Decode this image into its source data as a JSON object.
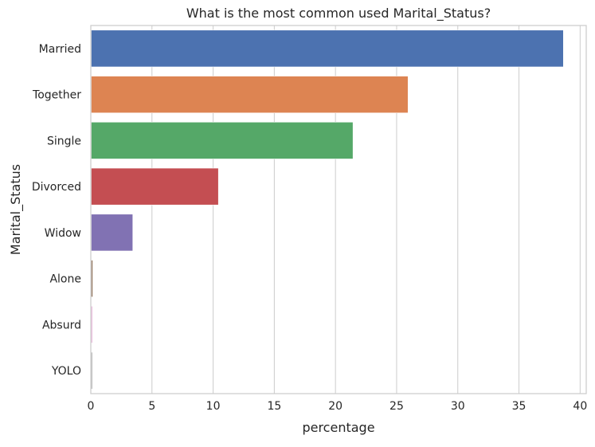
{
  "chart_data": {
    "type": "bar",
    "orientation": "horizontal",
    "title": "What is the most common used Marital_Status?",
    "xlabel": "percentage",
    "ylabel": "Marital_Status",
    "categories": [
      "Married",
      "Together",
      "Single",
      "Divorced",
      "Widow",
      "Alone",
      "Absurd",
      "YOLO"
    ],
    "values": [
      38.6,
      25.9,
      21.4,
      10.4,
      3.4,
      0.13,
      0.09,
      0.09
    ],
    "colors": [
      "#4c72b0",
      "#dd8452",
      "#55a868",
      "#c44e52",
      "#8172b3",
      "#937860",
      "#da8bc3",
      "#8c8c8c"
    ],
    "xlim": [
      0,
      40.5
    ],
    "xticks": [
      "0",
      "5",
      "10",
      "15",
      "20",
      "25",
      "30",
      "35",
      "40"
    ],
    "grid": "vertical",
    "legend": "none"
  }
}
